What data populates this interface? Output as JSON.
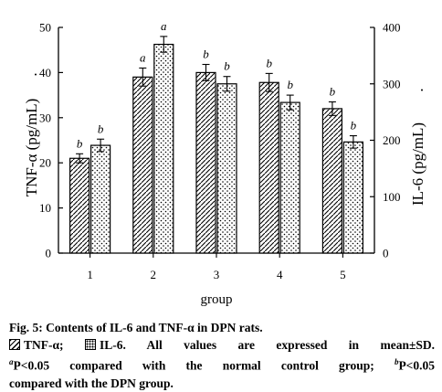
{
  "chart_data": {
    "type": "bar",
    "categories": [
      "1",
      "2",
      "3",
      "4",
      "5"
    ],
    "xlabel": "group",
    "ylabel_left": "TNF-α (pg/mL)",
    "ylabel_right": "IL-6 (pg/mL)",
    "ylabel_dot": ".",
    "ylim_left": [
      0,
      50
    ],
    "yticks_left": [
      "0",
      "10",
      "20",
      "30",
      "40",
      "50"
    ],
    "ylim_right": [
      0,
      400
    ],
    "yticks_right": [
      "0",
      "100",
      "200",
      "300",
      "400"
    ],
    "grid": false,
    "series": [
      {
        "name": "TNF-α",
        "axis": "left",
        "pattern": "hatch",
        "values": [
          21,
          39,
          40,
          37.8,
          32
        ],
        "errors": [
          1,
          2,
          1.8,
          2,
          1.5
        ],
        "annotations": [
          "b",
          "a",
          "b",
          "b",
          "b"
        ]
      },
      {
        "name": "IL-6",
        "axis": "right",
        "pattern": "dots",
        "values": [
          191,
          370,
          300,
          267,
          197
        ],
        "errors": [
          11,
          14,
          13,
          13,
          11
        ],
        "annotations": [
          "b",
          "a",
          "b",
          "b",
          "b"
        ]
      }
    ]
  },
  "caption": {
    "title": "Fig. 5: Contents of IL-6 and TNF-α in DPN rats.",
    "legend_tnf": "TNF-α;",
    "legend_il6": "IL-6.",
    "line2_rest": "All values are expressed in mean±SD.",
    "note_a_sup": "a",
    "note_a": "P<0.05 compared with the normal control group;",
    "note_b_sup": "b",
    "note_b": "P<0.05",
    "line4": "compared with the DPN group."
  }
}
